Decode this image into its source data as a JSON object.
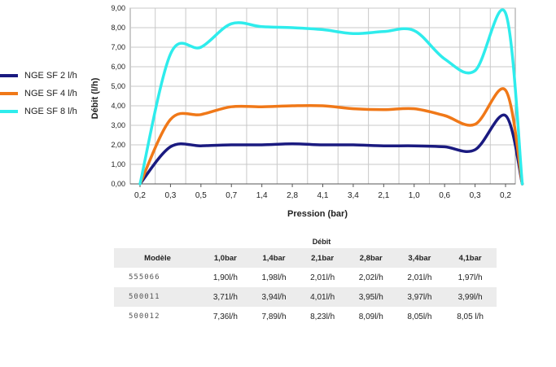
{
  "chart_data": {
    "type": "line",
    "title": "",
    "xlabel": "Pression (bar)",
    "ylabel": "Débit (l/h)",
    "ylim": [
      0,
      9
    ],
    "yticks": [
      "0,00",
      "1,00",
      "2,00",
      "3,00",
      "4,00",
      "5,00",
      "6,00",
      "7,00",
      "8,00",
      "9,00"
    ],
    "categories": [
      "0,2",
      "0,3",
      "0,5",
      "0,7",
      "1,4",
      "2,8",
      "4,1",
      "3,4",
      "2,1",
      "1,0",
      "0,6",
      "0,3",
      "0,2"
    ],
    "grid": true,
    "legend_position": "left",
    "series": [
      {
        "name": "NGE SF 2 l/h",
        "color": "#1a1a80",
        "values": [
          0,
          1.9,
          1.95,
          2.0,
          2.0,
          2.05,
          2.0,
          2.0,
          1.95,
          1.95,
          1.9,
          1.75,
          3.5
        ]
      },
      {
        "name": "NGE SF 4 l/h",
        "color": "#f07818",
        "values": [
          0,
          3.3,
          3.55,
          3.95,
          3.95,
          4.0,
          4.0,
          3.85,
          3.8,
          3.85,
          3.5,
          3.05,
          4.8
        ]
      },
      {
        "name": "NGE SF 8 l/h",
        "color": "#2eecec",
        "values": [
          0,
          6.65,
          7.0,
          8.2,
          8.05,
          8.0,
          7.9,
          7.7,
          7.8,
          7.85,
          6.4,
          5.8,
          8.75
        ]
      }
    ]
  },
  "table": {
    "title": "Débit",
    "headers": [
      "Modèle",
      "1,0bar",
      "1,4bar",
      "2,1bar",
      "2,8bar",
      "3,4bar",
      "4,1bar"
    ],
    "rows": [
      [
        "555066",
        "1,90l/h",
        "1,98l/h",
        "2,01l/h",
        "2,02l/h",
        "2,01l/h",
        "1,97l/h"
      ],
      [
        "500011",
        "3,71l/h",
        "3,94l/h",
        "4,01l/h",
        "3,95l/h",
        "3,97l/h",
        "3,99l/h"
      ],
      [
        "500012",
        "7,36l/h",
        "7,89l/h",
        "8,23l/h",
        "8,09l/h",
        "8,05l/h",
        "8,05 l/h"
      ]
    ]
  }
}
